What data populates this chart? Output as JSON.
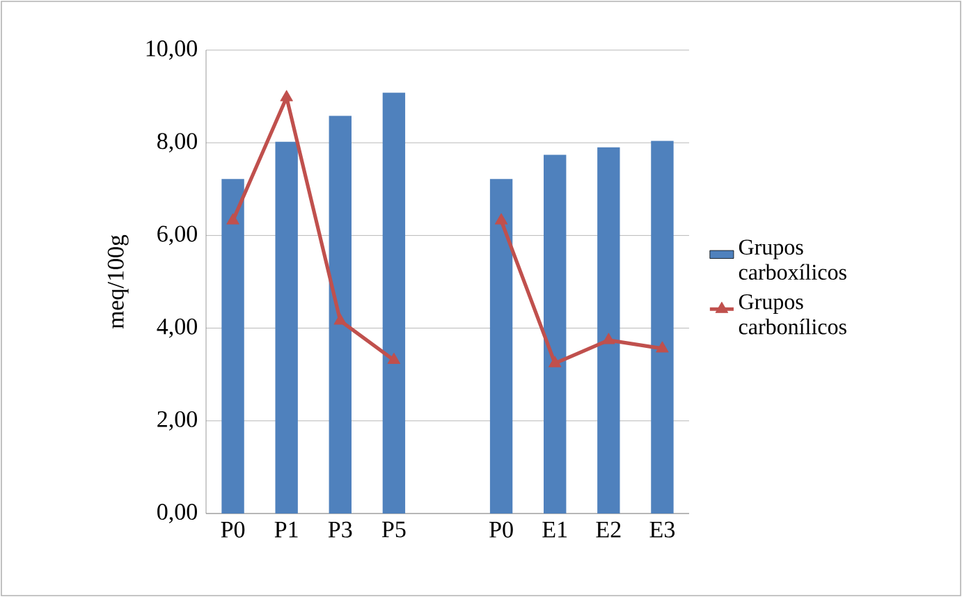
{
  "chart_data": {
    "type": "bar",
    "ylabel": "meq/100g",
    "categories": [
      "P0",
      "P1",
      "P3",
      "P5",
      null,
      "P0",
      "E1",
      "E2",
      "E3"
    ],
    "series": [
      {
        "name": "Grupos carboxílicos",
        "color": "#4f81bd",
        "values": [
          7.22,
          8.02,
          8.58,
          9.08,
          null,
          7.22,
          7.74,
          7.9,
          8.04
        ]
      },
      {
        "name": "Grupos carbonílicos",
        "type": "line",
        "color": "#c0504d",
        "marker": "triangle",
        "values": [
          6.32,
          8.98,
          4.16,
          3.31,
          null,
          6.32,
          3.24,
          3.74,
          3.56
        ]
      }
    ],
    "ylim": [
      0,
      10
    ],
    "yticks": [
      {
        "value": 0,
        "label": "0,00"
      },
      {
        "value": 2,
        "label": "2,00"
      },
      {
        "value": 4,
        "label": "4,00"
      },
      {
        "value": 6,
        "label": "6,00"
      },
      {
        "value": 8,
        "label": "8,00"
      },
      {
        "value": 10,
        "label": "10,00"
      }
    ],
    "grid": "y",
    "legend": "right"
  }
}
